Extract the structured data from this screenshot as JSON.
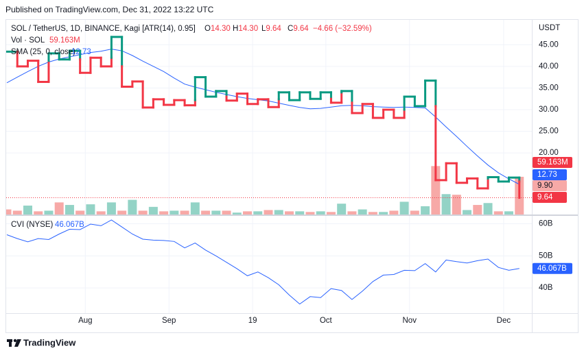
{
  "header": {
    "published": "Published on TradingView.com, Dec 31, 2022 13:22 UTC"
  },
  "footer": {
    "brand": "TradingView"
  },
  "chart_data": [
    {
      "type": "kagi",
      "title": "SOL / TetherUS, 1D, BINANCE, Kagi [ATR(14), 0.95]",
      "ohlc": [
        {
          "name": "O",
          "value": "14.30"
        },
        {
          "name": "H",
          "value": "14.30"
        },
        {
          "name": "L",
          "value": "9.64"
        },
        {
          "name": "C",
          "value": "9.64"
        }
      ],
      "change": "−4.66 (−32.59%)",
      "categories": [
        null,
        null,
        null,
        null,
        null,
        null,
        null,
        "Aug",
        null,
        null,
        null,
        null,
        null,
        null,
        null,
        "Sep",
        null,
        null,
        null,
        null,
        null,
        null,
        null,
        "19",
        null,
        null,
        null,
        null,
        null,
        null,
        "Oct",
        null,
        null,
        null,
        null,
        null,
        null,
        null,
        "Nov",
        null,
        null,
        null,
        null,
        null,
        null,
        null,
        null,
        "Dec",
        null,
        null
      ],
      "values": [
        43.4,
        40.0,
        41.3,
        36.4,
        43.0,
        41.6,
        43.6,
        38.5,
        42.0,
        40.0,
        46.8,
        35.3,
        36.5,
        30.5,
        32.4,
        31.1,
        32.2,
        31.0,
        37.5,
        33.0,
        34.3,
        32.1,
        33.7,
        31.3,
        32.4,
        30.6,
        34.0,
        32.2,
        34.0,
        32.5,
        34.0,
        31.6,
        34.3,
        29.2,
        31.3,
        28.1,
        30.0,
        28.1,
        33.0,
        30.8,
        36.7,
        13.7,
        17.6,
        13.1,
        14.1,
        11.8,
        14.4,
        13.4,
        14.3,
        9.64
      ],
      "yang_color": "#089981",
      "yin_color": "#f23645",
      "ylim": [
        5.77,
        50.74
      ],
      "yticks": [
        {
          "value": 20,
          "label": "20.00"
        },
        {
          "value": 25,
          "label": "25.00"
        },
        {
          "value": 30,
          "label": "30.00"
        },
        {
          "value": 35,
          "label": "35.00"
        },
        {
          "value": 40,
          "label": "40.00"
        },
        {
          "value": 45,
          "label": "45.00"
        }
      ],
      "y_unit": "USDT",
      "grid": true,
      "extra_axis_label": "9.90",
      "volume": {
        "name": "Vol · SOL",
        "values": [
          8,
          6,
          14,
          5,
          6,
          19,
          15,
          6,
          16,
          5,
          19,
          6,
          23,
          6,
          12,
          5,
          6,
          6,
          19,
          6,
          6,
          6,
          3,
          5,
          5,
          7,
          7,
          5,
          5,
          4,
          5,
          4,
          17,
          5,
          8,
          4,
          4,
          6,
          20,
          6,
          13,
          76,
          32,
          31,
          7,
          15,
          18,
          5,
          5,
          59.163
        ],
        "value_labels": [
          null,
          null,
          null,
          null,
          null,
          null,
          null,
          null,
          null,
          null,
          null,
          null,
          null,
          null,
          null,
          null,
          null,
          null,
          null,
          null,
          null,
          null,
          null,
          null,
          null,
          null,
          null,
          null,
          null,
          null,
          null,
          null,
          null,
          null,
          null,
          null,
          null,
          null,
          null,
          null,
          null,
          null,
          null,
          null,
          null,
          null,
          null,
          null,
          null,
          "59.163M"
        ],
        "up_color": "#93d3c6",
        "down_color": "#f7a9a7",
        "label_color": "#f23645"
      },
      "sma": {
        "name": "SMA (25, 0, close)",
        "color": "#2962ff",
        "values": [
          36.2,
          37.5,
          38.8,
          40.0,
          41.0,
          41.7,
          42.2,
          42.7,
          43.2,
          43.5,
          44.0,
          43.6,
          42.5,
          41.2,
          40.0,
          38.8,
          37.3,
          35.9,
          35.2,
          34.6,
          34.0,
          33.5,
          33.0,
          32.6,
          32.3,
          32.0,
          31.5,
          31.0,
          30.5,
          30.2,
          30.3,
          30.6,
          30.9,
          31.0,
          30.9,
          30.7,
          30.6,
          30.5,
          30.6,
          30.5,
          30.4,
          28.3,
          26.0,
          23.8,
          21.5,
          19.3,
          17.2,
          15.4,
          14.0,
          12.73
        ]
      }
    },
    {
      "type": "line",
      "title": "CVI (NYSE)",
      "color": "#2962ff",
      "values": [
        56.6,
        55.4,
        54.4,
        55.4,
        55.1,
        56.8,
        58.3,
        58.2,
        59.9,
        59.4,
        61.2,
        59.0,
        56.8,
        55.2,
        54.9,
        54.8,
        54.5,
        52.5,
        54.0,
        51.8,
        50.0,
        48.0,
        46.0,
        43.8,
        45.0,
        43.2,
        41.0,
        37.8,
        35.0,
        37.3,
        37.0,
        39.8,
        39.2,
        36.4,
        39.0,
        42.0,
        44.0,
        44.2,
        45.5,
        45.4,
        47.6,
        45.0,
        48.7,
        48.2,
        47.8,
        48.5,
        49.0,
        46.4,
        45.5,
        46.067
      ],
      "value_labels": [
        null,
        null,
        null,
        null,
        null,
        null,
        null,
        null,
        null,
        null,
        null,
        null,
        null,
        null,
        null,
        null,
        null,
        null,
        null,
        null,
        null,
        null,
        null,
        null,
        null,
        null,
        null,
        null,
        null,
        null,
        null,
        null,
        null,
        null,
        null,
        null,
        null,
        null,
        null,
        null,
        null,
        null,
        null,
        null,
        null,
        null,
        null,
        null,
        null,
        "46.067B"
      ],
      "ylim": [
        32.13,
        62.47
      ],
      "yticks": [
        {
          "value": 40,
          "label": "40B"
        },
        {
          "value": 50,
          "label": "50B"
        },
        {
          "value": 60,
          "label": "60B"
        }
      ],
      "grid": true
    }
  ]
}
